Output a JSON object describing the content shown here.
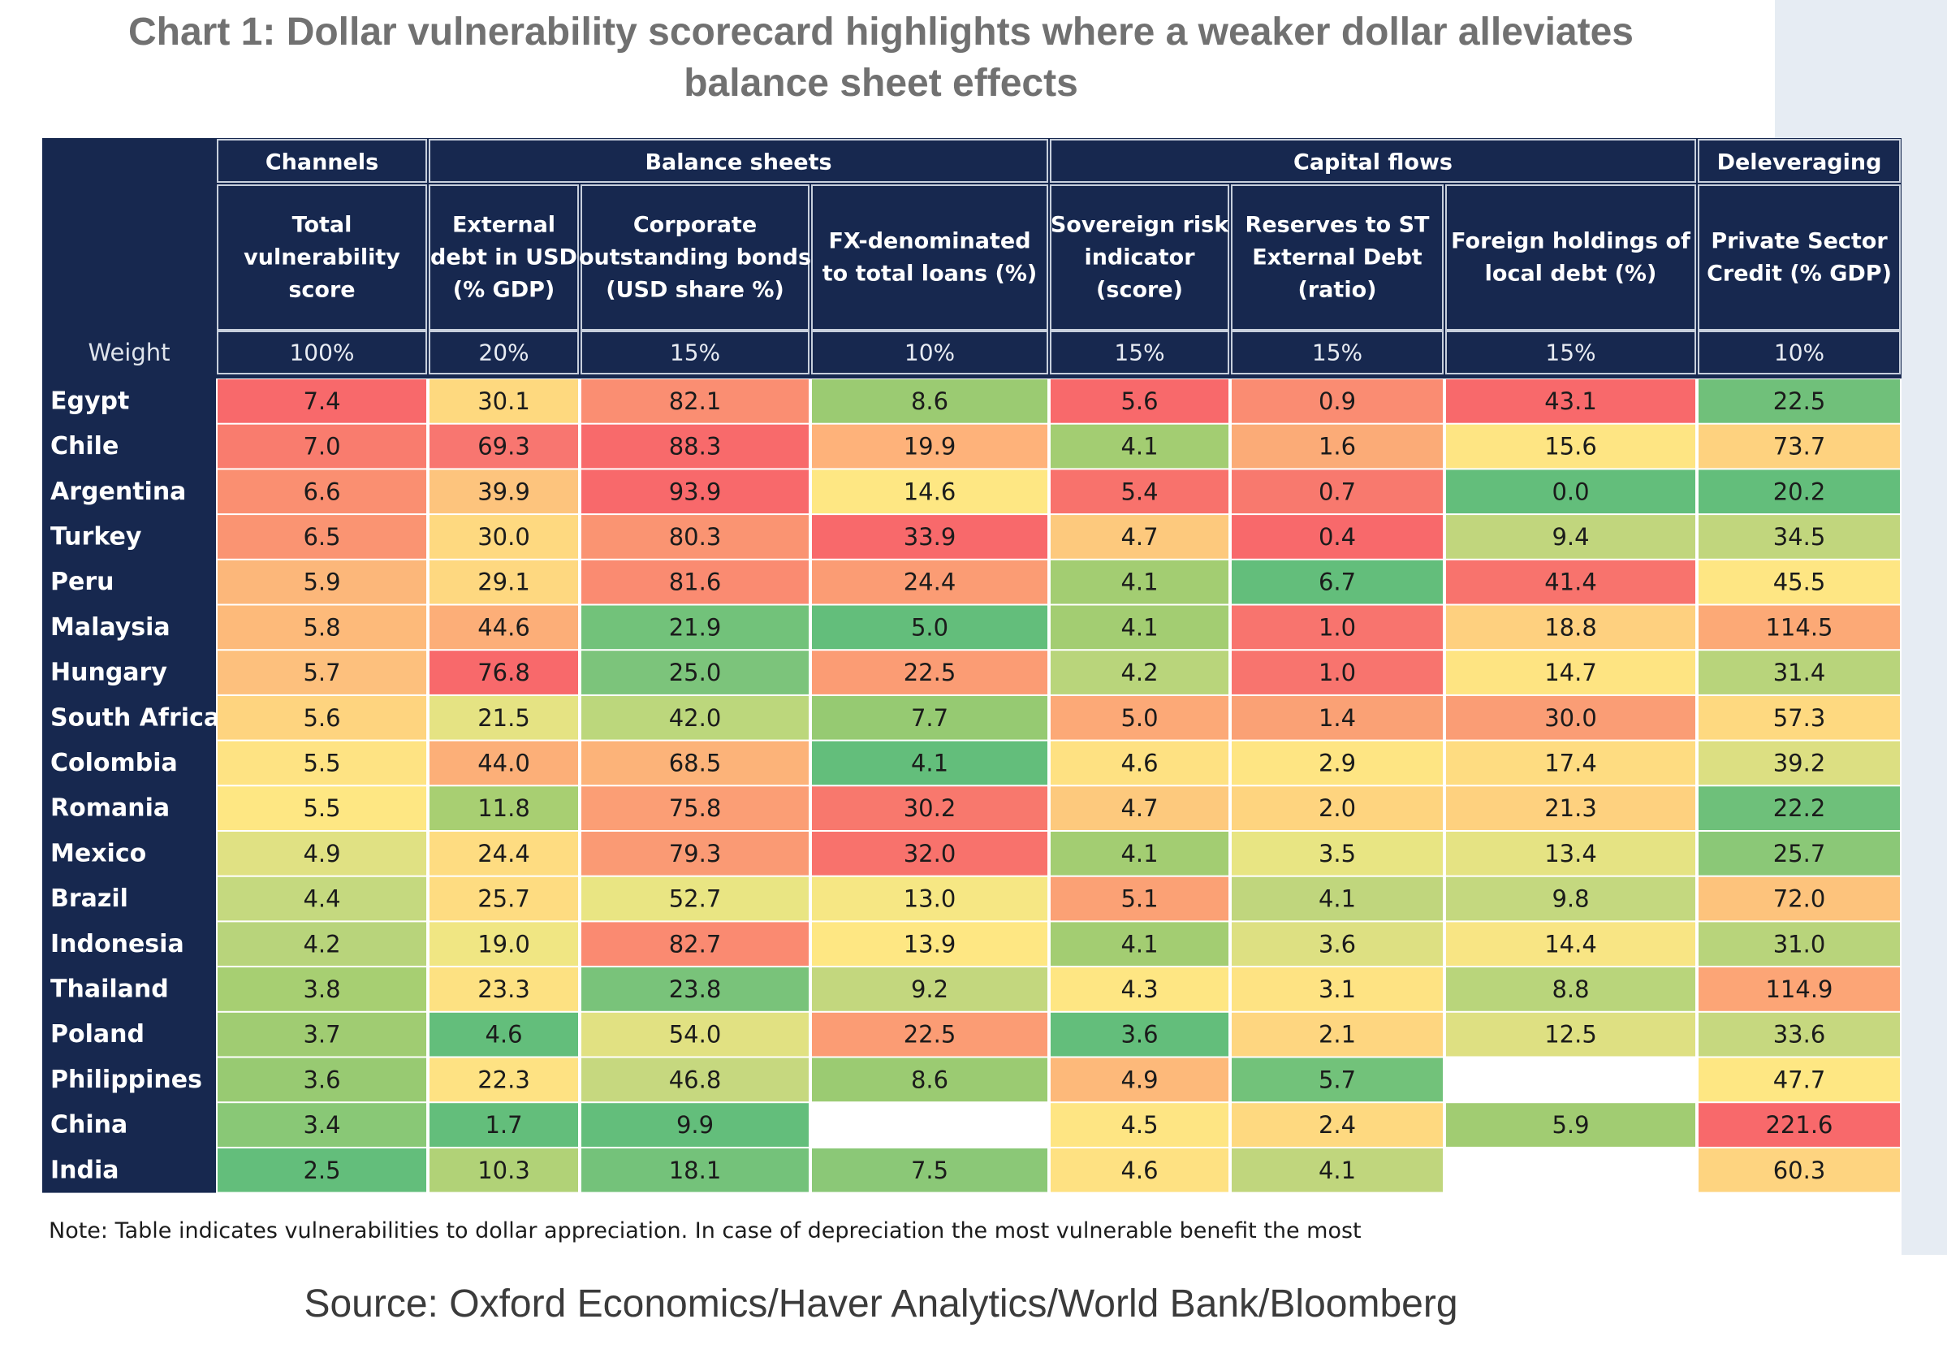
{
  "title_line1": "Chart 1: Dollar vulnerability scorecard highlights where a weaker dollar alleviates",
  "title_line2": "balance sheet effects",
  "note": "Note: Table indicates vulnerabilities to dollar appreciation. In case of depreciation the most vulnerable benefit the most",
  "source": "Source: Oxford Economics/Haver Analytics/World Bank/Bloomberg",
  "chart_data": {
    "type": "table",
    "title": "Chart 1: Dollar vulnerability scorecard highlights where a weaker dollar alleviates balance sheet effects",
    "weight_label": "Weight",
    "groups": [
      {
        "name": "Channels",
        "columns": 1
      },
      {
        "name": "Balance sheets",
        "columns": 3
      },
      {
        "name": "Capital flows",
        "columns": 3
      },
      {
        "name": "Deleveraging",
        "columns": 1
      }
    ],
    "columns": [
      {
        "lines": [
          "Total",
          "vulnerability",
          "score"
        ],
        "weight": "100%"
      },
      {
        "lines": [
          "External",
          "debt in USD",
          "(% GDP)"
        ],
        "weight": "20%"
      },
      {
        "lines": [
          "Corporate",
          "outstanding bonds",
          "(USD share %)"
        ],
        "weight": "15%"
      },
      {
        "lines": [
          "FX-denominated",
          "to total loans (%)"
        ],
        "weight": "10%"
      },
      {
        "lines": [
          "Sovereign risk",
          "indicator",
          "(score)"
        ],
        "weight": "15%"
      },
      {
        "lines": [
          "Reserves to ST",
          "External Debt",
          "(ratio)"
        ],
        "weight": "15%"
      },
      {
        "lines": [
          "Foreign holdings of",
          "local debt (%)"
        ],
        "weight": "15%"
      },
      {
        "lines": [
          "Private Sector",
          "Credit (% GDP)"
        ],
        "weight": "10%"
      }
    ],
    "rows": [
      {
        "country": "Egypt",
        "values": [
          7.4,
          30.1,
          82.1,
          8.6,
          5.6,
          0.9,
          43.1,
          22.5
        ]
      },
      {
        "country": "Chile",
        "values": [
          7.0,
          69.3,
          88.3,
          19.9,
          4.1,
          1.6,
          15.6,
          73.7
        ]
      },
      {
        "country": "Argentina",
        "values": [
          6.6,
          39.9,
          93.9,
          14.6,
          5.4,
          0.7,
          0.0,
          20.2
        ]
      },
      {
        "country": "Turkey",
        "values": [
          6.5,
          30.0,
          80.3,
          33.9,
          4.7,
          0.4,
          9.4,
          34.5
        ]
      },
      {
        "country": "Peru",
        "values": [
          5.9,
          29.1,
          81.6,
          24.4,
          4.1,
          6.7,
          41.4,
          45.5
        ]
      },
      {
        "country": "Malaysia",
        "values": [
          5.8,
          44.6,
          21.9,
          5.0,
          4.1,
          1.0,
          18.8,
          114.5
        ]
      },
      {
        "country": "Hungary",
        "values": [
          5.7,
          76.8,
          25.0,
          22.5,
          4.2,
          1.0,
          14.7,
          31.4
        ]
      },
      {
        "country": "South Africa",
        "values": [
          5.6,
          21.5,
          42.0,
          7.7,
          5.0,
          1.4,
          30.0,
          57.3
        ]
      },
      {
        "country": "Colombia",
        "values": [
          5.5,
          44.0,
          68.5,
          4.1,
          4.6,
          2.9,
          17.4,
          39.2
        ]
      },
      {
        "country": "Romania",
        "values": [
          5.5,
          11.8,
          75.8,
          30.2,
          4.7,
          2.0,
          21.3,
          22.2
        ]
      },
      {
        "country": "Mexico",
        "values": [
          4.9,
          24.4,
          79.3,
          32.0,
          4.1,
          3.5,
          13.4,
          25.7
        ]
      },
      {
        "country": "Brazil",
        "values": [
          4.4,
          25.7,
          52.7,
          13.0,
          5.1,
          4.1,
          9.8,
          72.0
        ]
      },
      {
        "country": "Indonesia",
        "values": [
          4.2,
          19.0,
          82.7,
          13.9,
          4.1,
          3.6,
          14.4,
          31.0
        ]
      },
      {
        "country": "Thailand",
        "values": [
          3.8,
          23.3,
          23.8,
          9.2,
          4.3,
          3.1,
          8.8,
          114.9
        ]
      },
      {
        "country": "Poland",
        "values": [
          3.7,
          4.6,
          54.0,
          22.5,
          3.6,
          2.1,
          12.5,
          33.6
        ]
      },
      {
        "country": "Philippines",
        "values": [
          3.6,
          22.3,
          46.8,
          8.6,
          4.9,
          5.7,
          null,
          47.7
        ]
      },
      {
        "country": "China",
        "values": [
          3.4,
          1.7,
          9.9,
          null,
          4.5,
          2.4,
          5.9,
          221.6
        ]
      },
      {
        "country": "India",
        "values": [
          2.5,
          10.3,
          18.1,
          7.5,
          4.6,
          4.1,
          null,
          60.3
        ]
      }
    ],
    "cell_colors": [
      [
        "#f8696b",
        "#fed97f",
        "#fa8e72",
        "#9bcb72",
        "#f8696b",
        "#fa8c72",
        "#f8696b",
        "#70c07a"
      ],
      [
        "#f97c6e",
        "#f87670",
        "#f86a6b",
        "#feb27a",
        "#a3cd72",
        "#fbab77",
        "#fee583",
        "#fed27f"
      ],
      [
        "#fa8f71",
        "#fdc47d",
        "#f8696b",
        "#fee783",
        "#f8726c",
        "#f8796e",
        "#63be7b",
        "#63be7b"
      ],
      [
        "#fa9472",
        "#fed980",
        "#fa9472",
        "#f8696b",
        "#fdc97d",
        "#f8696b",
        "#c1d67d",
        "#c1d67d"
      ],
      [
        "#fcb77a",
        "#fed880",
        "#fa8b71",
        "#fb9c74",
        "#a3cd72",
        "#63be7b",
        "#f8736d",
        "#fee683"
      ],
      [
        "#fdba7a",
        "#fcae78",
        "#72c27a",
        "#63be7b",
        "#a3cd72",
        "#f8746e",
        "#fed07f",
        "#fca976"
      ],
      [
        "#fdc07d",
        "#f8696b",
        "#7cc47b",
        "#fb9c74",
        "#b9d57b",
        "#f8746e",
        "#fee482",
        "#b8d47b"
      ],
      [
        "#fed47f",
        "#e5e383",
        "#bcd77c",
        "#96ca72",
        "#fca977",
        "#faa175",
        "#fa9d75",
        "#fed980"
      ],
      [
        "#fee383",
        "#fcaf78",
        "#fcb379",
        "#63be7b",
        "#fee182",
        "#fee583",
        "#fedc81",
        "#dcdf82"
      ],
      [
        "#fee783",
        "#a8cf72",
        "#fb9e75",
        "#f8786d",
        "#fdc97d",
        "#fed47f",
        "#fed17f",
        "#6ec07a"
      ],
      [
        "#e0e183",
        "#fedc81",
        "#fa9a74",
        "#f8726c",
        "#a3cd72",
        "#e8e583",
        "#e5e383",
        "#8bc877"
      ],
      [
        "#c5d97f",
        "#fedc81",
        "#e9e583",
        "#f6e784",
        "#fba175",
        "#c0d67d",
        "#c4d87f",
        "#fdc37c"
      ],
      [
        "#b8d47b",
        "#f0e683",
        "#fa8a71",
        "#fee783",
        "#a3cd72",
        "#dde082",
        "#f8e584",
        "#b8d47b"
      ],
      [
        "#a7cf72",
        "#fde182",
        "#79c37a",
        "#c3d77e",
        "#fee683",
        "#fee383",
        "#b9d57b",
        "#fca576"
      ],
      [
        "#a0cc72",
        "#63be7b",
        "#e1e182",
        "#fb9c74",
        "#63be7b",
        "#fed680",
        "#dee082",
        "#c6d87f"
      ],
      [
        "#98ca72",
        "#fee283",
        "#c6d87f",
        "#9bcb72",
        "#fdb97a",
        "#72c27a",
        null,
        "#fee783"
      ],
      [
        "#89c876",
        "#63be7b",
        "#63be7b",
        null,
        "#fee583",
        "#fed980",
        "#a1cc72",
        "#f8696b"
      ],
      [
        "#63be7b",
        "#b1d277",
        "#74c27a",
        "#8bc877",
        "#fee182",
        "#c0d67d",
        null,
        "#fed480"
      ]
    ],
    "palette": {
      "navy": "#17284f",
      "red": "#f8696b",
      "yellow": "#ffe784",
      "green": "#63be7b"
    }
  }
}
